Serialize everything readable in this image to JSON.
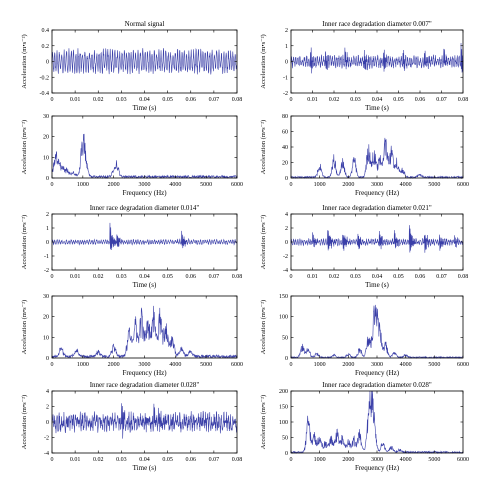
{
  "chart_data": [
    {
      "type": "line",
      "panel": "time",
      "title": "Normal signal",
      "xlabel": "Time (s)",
      "ylabel": "Acceleration (m•s⁻²)",
      "xlim": [
        0,
        0.08
      ],
      "ylim": [
        -0.4,
        0.4
      ],
      "xticks": [
        0,
        0.01,
        0.02,
        0.03,
        0.04,
        0.05,
        0.06,
        0.07,
        0.08
      ],
      "xtick_labels": [
        "0",
        "0.01",
        "0.02",
        "0.03",
        "0.04",
        "0.05",
        "0.06",
        "0.07",
        "0.08"
      ],
      "yticks": [
        -0.4,
        -0.2,
        0,
        0.2,
        0.4
      ],
      "ytick_labels": [
        "-0.4",
        "-0.2",
        "0",
        "0.2",
        "0.4"
      ],
      "signal": {
        "kind": "sinusoid",
        "amplitude": 0.12,
        "noise": 0.05,
        "impulses": []
      }
    },
    {
      "type": "line",
      "panel": "time",
      "title": "Inner race degradation diameter 0.007\"",
      "xlabel": "Time (s)",
      "ylabel": "Acceleration (m•s⁻²)",
      "xlim": [
        0,
        0.08
      ],
      "ylim": [
        -2,
        2
      ],
      "xticks": [
        0,
        0.01,
        0.02,
        0.03,
        0.04,
        0.05,
        0.06,
        0.07,
        0.08
      ],
      "xtick_labels": [
        "0",
        "0.01",
        "0.02",
        "0.03",
        "0.04",
        "0.05",
        "0.06",
        "0.07",
        "0.08"
      ],
      "yticks": [
        -2,
        -1,
        0,
        1,
        2
      ],
      "ytick_labels": [
        "-2",
        "-1",
        "0",
        "1",
        "2"
      ],
      "signal": {
        "kind": "impulsive",
        "amplitude": 0.25,
        "noise": 0.2,
        "impulses": [
          [
            0.009,
            1.0
          ],
          [
            0.016,
            0.9
          ],
          [
            0.025,
            0.8
          ],
          [
            0.034,
            0.9
          ],
          [
            0.043,
            1.0
          ],
          [
            0.052,
            0.8
          ],
          [
            0.062,
            0.9
          ],
          [
            0.071,
            0.8
          ],
          [
            0.079,
            1.2
          ]
        ]
      }
    },
    {
      "type": "line",
      "panel": "spectrum",
      "xlabel": "Frequency (Hz)",
      "ylabel": "Acceleration (m•s⁻²)",
      "xlim": [
        0,
        6000
      ],
      "ylim": [
        0,
        30
      ],
      "xticks": [
        0,
        1000,
        2000,
        3000,
        4000,
        5000,
        6000
      ],
      "xtick_labels": [
        "0",
        "1000",
        "2000",
        "3000",
        "4000",
        "5000",
        "6000"
      ],
      "yticks": [
        0,
        10,
        20,
        30
      ],
      "ytick_labels": [
        "0",
        "10",
        "20",
        "30"
      ],
      "peaks": [
        [
          100,
          10
        ],
        [
          200,
          8
        ],
        [
          350,
          5
        ],
        [
          500,
          4
        ],
        [
          700,
          3
        ],
        [
          1000,
          22
        ],
        [
          1100,
          6
        ],
        [
          2000,
          3
        ],
        [
          2100,
          7
        ]
      ],
      "floor": 1.2
    },
    {
      "type": "line",
      "panel": "spectrum",
      "xlabel": "Frequency (Hz)",
      "ylabel": "Acceleration (m•s⁻²)",
      "xlim": [
        0,
        6000
      ],
      "ylim": [
        0,
        80
      ],
      "xticks": [
        0,
        1000,
        2000,
        3000,
        4000,
        5000,
        6000
      ],
      "xtick_labels": [
        "0",
        "1000",
        "2000",
        "3000",
        "4000",
        "5000",
        "6000"
      ],
      "yticks": [
        0,
        20,
        40,
        60,
        80
      ],
      "ytick_labels": [
        "0",
        "20",
        "40",
        "60",
        "80"
      ],
      "peaks": [
        [
          1000,
          20
        ],
        [
          1500,
          30
        ],
        [
          1800,
          25
        ],
        [
          2200,
          28
        ],
        [
          2700,
          45
        ],
        [
          2900,
          40
        ],
        [
          3100,
          30
        ],
        [
          3300,
          55
        ],
        [
          3500,
          42
        ],
        [
          3700,
          25
        ],
        [
          3900,
          12
        ],
        [
          4500,
          5
        ]
      ],
      "floor": 2
    },
    {
      "type": "line",
      "panel": "time",
      "title": "Inner race degradation diameter 0.014\"",
      "xlabel": "Time (s)",
      "ylabel": "Acceleration (m•s⁻²)",
      "xlim": [
        0,
        0.08
      ],
      "ylim": [
        -2,
        2
      ],
      "xticks": [
        0,
        0.01,
        0.02,
        0.03,
        0.04,
        0.05,
        0.06,
        0.07,
        0.08
      ],
      "xtick_labels": [
        "0",
        "0.01",
        "0.02",
        "0.03",
        "0.04",
        "0.05",
        "0.06",
        "0.07",
        "0.08"
      ],
      "yticks": [
        -2,
        -1,
        0,
        1,
        2
      ],
      "ytick_labels": [
        "-2",
        "-1",
        "0",
        "1",
        "2"
      ],
      "signal": {
        "kind": "impulsive",
        "amplitude": 0.12,
        "noise": 0.08,
        "impulses": [
          [
            0.025,
            1.5
          ],
          [
            0.028,
            0.7
          ],
          [
            0.056,
            1.0
          ]
        ]
      }
    },
    {
      "type": "line",
      "panel": "time",
      "title": "Inner race degradation diameter 0.021\"",
      "xlabel": "Time (s)",
      "ylabel": "Acceleration (m•s⁻²)",
      "xlim": [
        0,
        0.08
      ],
      "ylim": [
        -4,
        4
      ],
      "xticks": [
        0,
        0.01,
        0.02,
        0.03,
        0.04,
        0.05,
        0.06,
        0.07,
        0.08
      ],
      "xtick_labels": [
        "0",
        "0.01",
        "0.02",
        "0.03",
        "0.04",
        "0.05",
        "0.06",
        "0.07",
        "0.08"
      ],
      "yticks": [
        -4,
        -2,
        0,
        2,
        4
      ],
      "ytick_labels": [
        "-4",
        "-2",
        "0",
        "2",
        "4"
      ],
      "signal": {
        "kind": "impulsive",
        "amplitude": 0.3,
        "noise": 0.25,
        "impulses": [
          [
            0.01,
            1.5
          ],
          [
            0.017,
            2.5
          ],
          [
            0.024,
            2.2
          ],
          [
            0.031,
            1.8
          ],
          [
            0.041,
            2.0
          ],
          [
            0.048,
            2.0
          ],
          [
            0.055,
            3.0
          ],
          [
            0.062,
            2.2
          ],
          [
            0.069,
            1.6
          ],
          [
            0.076,
            1.2
          ]
        ]
      }
    },
    {
      "type": "line",
      "panel": "spectrum",
      "xlabel": "Frequency (Hz)",
      "ylabel": "Acceleration (m•s⁻²)",
      "xlim": [
        0,
        6000
      ],
      "ylim": [
        0,
        30
      ],
      "xticks": [
        0,
        1000,
        2000,
        3000,
        4000,
        5000,
        6000
      ],
      "xtick_labels": [
        "0",
        "1000",
        "2000",
        "3000",
        "4000",
        "5000",
        "6000"
      ],
      "yticks": [
        0,
        10,
        20,
        30
      ],
      "ytick_labels": [
        "0",
        "10",
        "20",
        "30"
      ],
      "peaks": [
        [
          300,
          5
        ],
        [
          800,
          4
        ],
        [
          1500,
          3
        ],
        [
          2000,
          6
        ],
        [
          2500,
          14
        ],
        [
          2700,
          20
        ],
        [
          2900,
          24
        ],
        [
          3100,
          22
        ],
        [
          3300,
          26
        ],
        [
          3500,
          24
        ],
        [
          3700,
          20
        ],
        [
          3900,
          12
        ],
        [
          4200,
          5
        ],
        [
          4500,
          3
        ]
      ],
      "floor": 1.5
    },
    {
      "type": "line",
      "panel": "spectrum",
      "xlabel": "Frequency (Hz)",
      "ylabel": "Acceleration (m•s⁻²)",
      "xlim": [
        0,
        6000
      ],
      "ylim": [
        0,
        150
      ],
      "xticks": [
        0,
        1000,
        2000,
        3000,
        4000,
        5000,
        6000
      ],
      "xtick_labels": [
        "0",
        "1000",
        "2000",
        "3000",
        "4000",
        "5000",
        "6000"
      ],
      "yticks": [
        0,
        50,
        100,
        150
      ],
      "ytick_labels": [
        "0",
        "50",
        "100",
        "150"
      ],
      "peaks": [
        [
          400,
          35
        ],
        [
          600,
          25
        ],
        [
          900,
          12
        ],
        [
          1500,
          8
        ],
        [
          2000,
          10
        ],
        [
          2400,
          25
        ],
        [
          2700,
          60
        ],
        [
          2900,
          110
        ],
        [
          3000,
          85
        ],
        [
          3100,
          70
        ],
        [
          3300,
          40
        ],
        [
          3600,
          15
        ],
        [
          4000,
          8
        ]
      ],
      "floor": 3
    },
    {
      "type": "line",
      "panel": "time",
      "title": "Inner race degradation diameter 0.028\"",
      "xlabel": "Time (s)",
      "ylabel": "Acceleration (m•s⁻²)",
      "xlim": [
        0,
        0.08
      ],
      "ylim": [
        -4,
        4
      ],
      "xticks": [
        0,
        0.01,
        0.02,
        0.03,
        0.04,
        0.05,
        0.06,
        0.07,
        0.08
      ],
      "xtick_labels": [
        "0",
        "0.01",
        "0.02",
        "0.03",
        "0.04",
        "0.05",
        "0.06",
        "0.07",
        "0.08"
      ],
      "yticks": [
        -4,
        -2,
        0,
        2,
        4
      ],
      "ytick_labels": [
        "-4",
        "-2",
        "0",
        "2",
        "4"
      ],
      "signal": {
        "kind": "noisy",
        "amplitude": 0.6,
        "noise": 0.9,
        "impulses": [
          [
            0.03,
            2.5
          ],
          [
            0.044,
            2.2
          ],
          [
            0.046,
            2.0
          ]
        ]
      }
    },
    {
      "type": "line",
      "panel": "spectrum",
      "title": "Inner race degradation diameter 0.028\"",
      "xlabel": "Frequency (Hz)",
      "ylabel": "Acceleration (m•s⁻²)",
      "xlim": [
        0,
        6000
      ],
      "ylim": [
        0,
        200
      ],
      "xticks": [
        0,
        1000,
        2000,
        3000,
        4000,
        5000,
        6000
      ],
      "xtick_labels": [
        "0",
        "1000",
        "2000",
        "3000",
        "4000",
        "5000",
        "6000"
      ],
      "yticks": [
        0,
        50,
        100,
        150,
        200
      ],
      "ytick_labels": [
        "0",
        "50",
        "100",
        "150",
        "200"
      ],
      "peaks": [
        [
          600,
          125
        ],
        [
          800,
          70
        ],
        [
          1000,
          60
        ],
        [
          1200,
          40
        ],
        [
          1400,
          55
        ],
        [
          1600,
          80
        ],
        [
          1800,
          60
        ],
        [
          2000,
          45
        ],
        [
          2200,
          50
        ],
        [
          2400,
          75
        ],
        [
          2700,
          120
        ],
        [
          2800,
          175
        ],
        [
          2900,
          100
        ],
        [
          3200,
          40
        ],
        [
          3500,
          20
        ],
        [
          3800,
          10
        ]
      ],
      "floor": 5
    }
  ]
}
